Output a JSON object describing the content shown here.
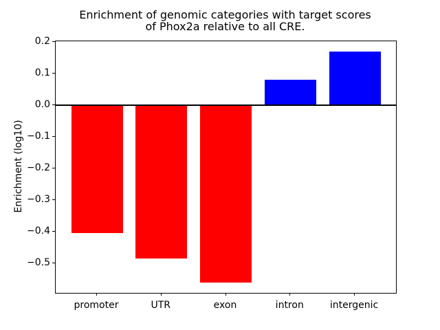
{
  "figure": {
    "title_lines": [
      "Enrichment of genomic categories with target scores",
      "of Phox2a relative to all CRE."
    ]
  },
  "chart_data": {
    "type": "bar",
    "title": "Enrichment of genomic categories with target scores of Phox2a relative to all CRE.",
    "categories": [
      "promoter",
      "UTR",
      "exon",
      "intron",
      "intergenic"
    ],
    "values": [
      -0.405,
      -0.485,
      -0.561,
      0.08,
      0.17
    ],
    "positive_color": "#0000ff",
    "negative_color": "#ff0000",
    "xlabel": "",
    "ylabel": "Enrichment (log10)",
    "yticks": [
      0.2,
      0.1,
      0.0,
      -0.1,
      -0.2,
      -0.3,
      -0.4,
      -0.5
    ],
    "ylim": [
      -0.594,
      0.202
    ],
    "xlim": [
      -0.64,
      4.64
    ],
    "bar_width": 0.8,
    "grid": false,
    "zero_line": true,
    "legend": null,
    "axis_color": "#000000",
    "background_color": "#ffffff"
  }
}
